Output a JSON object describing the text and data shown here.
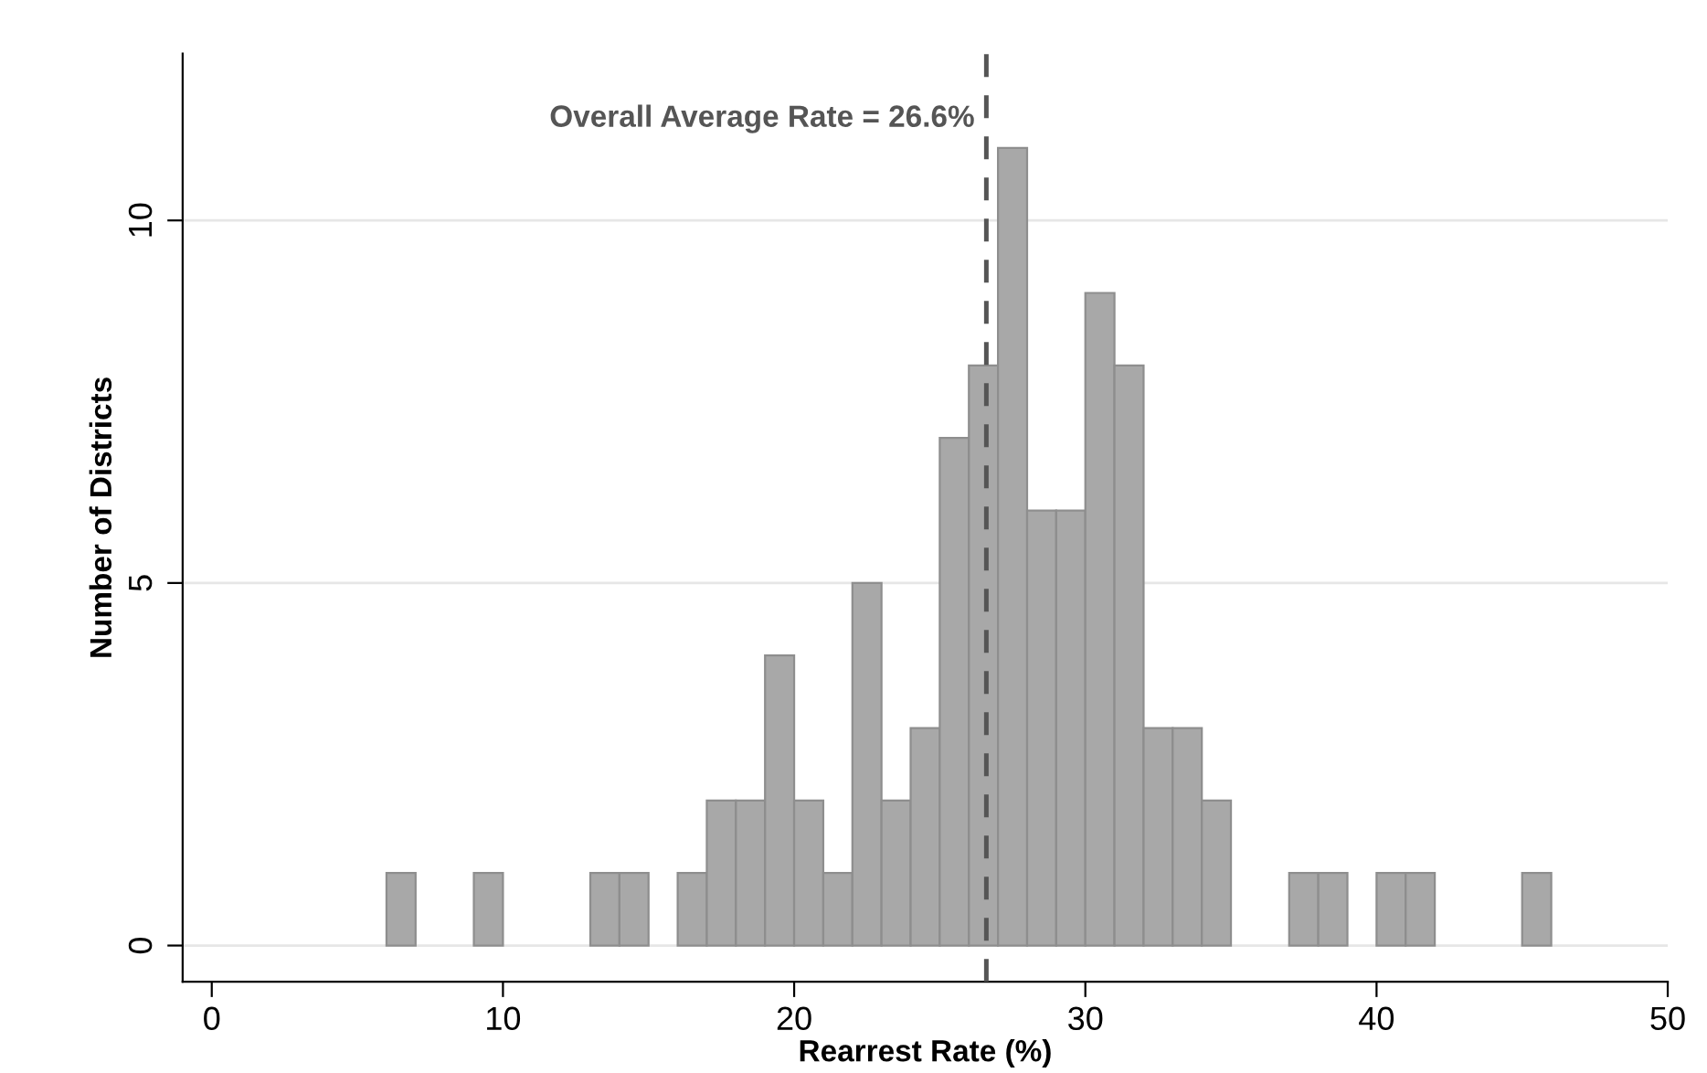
{
  "chart_data": {
    "type": "histogram",
    "bins": [
      6,
      7,
      8,
      9,
      10,
      11,
      12,
      13,
      14,
      15,
      16,
      17,
      18,
      19,
      20,
      21,
      22,
      23,
      24,
      25,
      26,
      27,
      28,
      29,
      30,
      31,
      32,
      33,
      34,
      35,
      36,
      37,
      38,
      39,
      40,
      41,
      42,
      43,
      44,
      45,
      46
    ],
    "values": [
      1,
      0,
      0,
      1,
      0,
      0,
      0,
      1,
      1,
      0,
      1,
      2,
      2,
      4,
      2,
      1,
      5,
      2,
      3,
      7,
      8,
      11,
      6,
      6,
      9,
      8,
      3,
      3,
      2,
      0,
      0,
      1,
      1,
      0,
      1,
      1,
      0,
      0,
      0,
      1
    ],
    "color": "#a8a8a8",
    "xlabel": "Rearrest Rate (%)",
    "ylabel": "Number of Districts",
    "xlim": [
      -1,
      50
    ],
    "xticks": [
      0,
      10,
      20,
      30,
      40,
      50
    ],
    "ylim": [
      -0.5,
      12.3
    ],
    "yticks": [
      0,
      5,
      10
    ],
    "grid": "y",
    "ref_lines": [
      {
        "axis": "x",
        "value": 26.6,
        "label": "Overall Average Rate = 26.6%",
        "color": "#555555",
        "line_style": "dashed"
      }
    ]
  }
}
